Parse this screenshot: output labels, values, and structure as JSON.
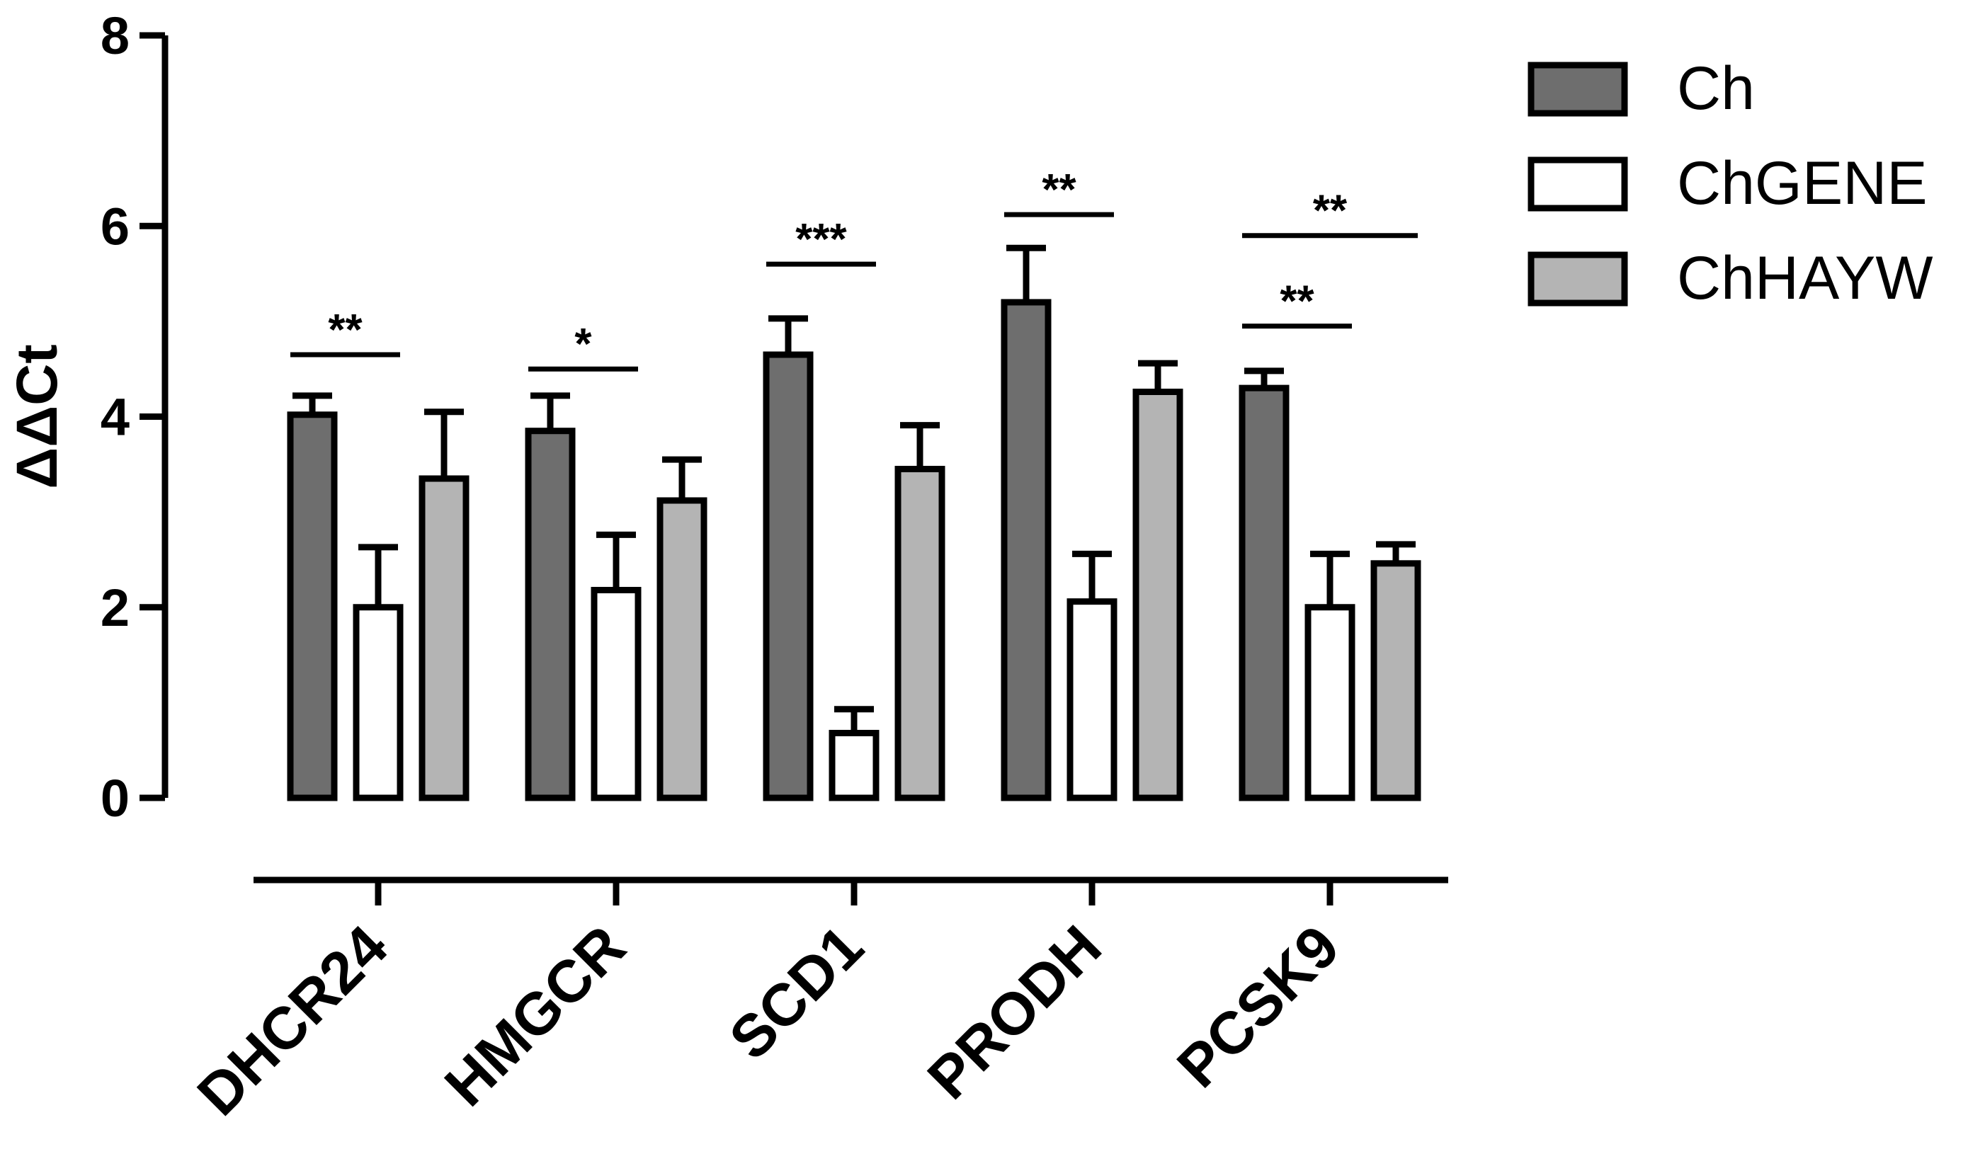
{
  "chart_data": {
    "type": "bar",
    "title": "",
    "xlabel": "",
    "ylabel": "ΔΔCt",
    "ylim": [
      0,
      8
    ],
    "yticks": [
      0,
      2,
      4,
      6,
      8
    ],
    "ytick_labels": [
      "0",
      "2",
      "4",
      "6",
      "8"
    ],
    "grid": false,
    "legend_position": "top-right",
    "categories": [
      "DHCR24",
      "HMGCR",
      "SCD1",
      "PRODH",
      "PCSK9"
    ],
    "series": [
      {
        "name": "Ch",
        "color": "#6e6e6e",
        "values": [
          4.02,
          3.85,
          4.65,
          5.2,
          4.3
        ],
        "errors": [
          0.2,
          0.37,
          0.38,
          0.57,
          0.18
        ]
      },
      {
        "name": "ChGENE",
        "color": "#ffffff",
        "values": [
          2.0,
          2.18,
          0.68,
          2.06,
          2.0
        ],
        "errors": [
          0.63,
          0.58,
          0.25,
          0.5,
          0.56
        ]
      },
      {
        "name": "ChHAYW",
        "color": "#b4b4b4",
        "values": [
          3.35,
          3.12,
          3.45,
          4.26,
          2.46
        ],
        "errors": [
          0.7,
          0.43,
          0.46,
          0.3,
          0.2
        ]
      }
    ],
    "annotations": [
      {
        "category": "DHCR24",
        "from_series": 0,
        "to_series": 1,
        "y": 4.65,
        "label": "**"
      },
      {
        "category": "HMGCR",
        "from_series": 0,
        "to_series": 1,
        "y": 4.5,
        "label": "*"
      },
      {
        "category": "SCD1",
        "from_series": 0,
        "to_series": 1,
        "y": 5.6,
        "label": "***"
      },
      {
        "category": "PRODH",
        "from_series": 0,
        "to_series": 1,
        "y": 6.12,
        "label": "**"
      },
      {
        "category": "PCSK9",
        "from_series": 0,
        "to_series": 1,
        "y": 4.95,
        "label": "**"
      },
      {
        "category": "PCSK9",
        "from_series": 0,
        "to_series": 2,
        "y": 5.9,
        "label": "**"
      }
    ]
  }
}
